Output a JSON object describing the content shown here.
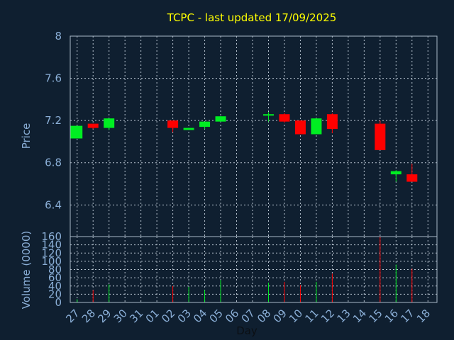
{
  "colors": {
    "background": "#0f1f30",
    "plot_background": "#0f1f30",
    "frame": "#a8b8c8",
    "grid": "#b8c4d0",
    "title": "#ffff00",
    "axis_text": "#8aaed6",
    "xlabel": "#0b0f14",
    "up": "#00ee22",
    "down": "#ff0000"
  },
  "chart_data": [
    {
      "type": "candlestick",
      "title": "TCPC - last updated 17/09/2025",
      "ylabel": "Price",
      "ylim": [
        6.1,
        8.0
      ],
      "yticks": [
        6.4,
        6.8,
        7.2,
        7.6,
        8
      ],
      "ytick_labels": [
        "6.4",
        "6.8",
        "7.2",
        "7.6",
        "8"
      ],
      "grid": true,
      "x_index": [
        -0.5,
        21.5
      ],
      "candles": [
        {
          "day": "27",
          "i": 0,
          "open": 7.03,
          "high": 7.15,
          "low": 7.03,
          "close": 7.15
        },
        {
          "day": "28",
          "i": 1,
          "open": 7.17,
          "high": 7.17,
          "low": 7.12,
          "close": 7.13
        },
        {
          "day": "29",
          "i": 2,
          "open": 7.13,
          "high": 7.22,
          "low": 7.11,
          "close": 7.22
        },
        {
          "day": "02",
          "i": 6,
          "open": 7.2,
          "high": 7.2,
          "low": 7.09,
          "close": 7.13
        },
        {
          "day": "03",
          "i": 7,
          "open": 7.11,
          "high": 7.13,
          "low": 7.11,
          "close": 7.13
        },
        {
          "day": "04",
          "i": 8,
          "open": 7.14,
          "high": 7.19,
          "low": 7.12,
          "close": 7.19
        },
        {
          "day": "05",
          "i": 9,
          "open": 7.19,
          "high": 7.24,
          "low": 7.19,
          "close": 7.24
        },
        {
          "day": "08",
          "i": 12,
          "open": 7.25,
          "high": 7.28,
          "low": 7.19,
          "close": 7.26
        },
        {
          "day": "09",
          "i": 13,
          "open": 7.26,
          "high": 7.27,
          "low": 7.18,
          "close": 7.19
        },
        {
          "day": "10",
          "i": 14,
          "open": 7.2,
          "high": 7.2,
          "low": 7.07,
          "close": 7.07
        },
        {
          "day": "11",
          "i": 15,
          "open": 7.07,
          "high": 7.22,
          "low": 7.07,
          "close": 7.22
        },
        {
          "day": "12",
          "i": 16,
          "open": 7.26,
          "high": 7.27,
          "low": 7.08,
          "close": 7.12
        },
        {
          "day": "15",
          "i": 19,
          "open": 7.17,
          "high": 7.2,
          "low": 6.92,
          "close": 6.92
        },
        {
          "day": "16",
          "i": 20,
          "open": 6.69,
          "high": 6.73,
          "low": 6.62,
          "close": 6.72
        },
        {
          "day": "17",
          "i": 21,
          "open": 6.69,
          "high": 6.79,
          "low": 6.62,
          "close": 6.62
        }
      ]
    },
    {
      "type": "bar",
      "ylabel": "Volume (0000)",
      "xlabel": "Day",
      "ylim": [
        0,
        160
      ],
      "yticks": [
        0,
        20,
        40,
        60,
        80,
        100,
        120,
        140,
        160
      ],
      "ytick_labels": [
        "0",
        "20",
        "40",
        "60",
        "80",
        "100",
        "120",
        "140",
        "160"
      ],
      "categories": [
        "27",
        "28",
        "29",
        "30",
        "31",
        "01",
        "02",
        "03",
        "04",
        "05",
        "06",
        "07",
        "08",
        "09",
        "10",
        "11",
        "12",
        "13",
        "14",
        "15",
        "16",
        "17",
        "18"
      ],
      "values": [
        8,
        30,
        44,
        0,
        0,
        0,
        40,
        38,
        30,
        55,
        0,
        0,
        48,
        50,
        42,
        50,
        70,
        0,
        0,
        160,
        92,
        82,
        0
      ],
      "bar_direction": [
        "up",
        "down",
        "up",
        "none",
        "none",
        "none",
        "down",
        "up",
        "up",
        "up",
        "none",
        "none",
        "up",
        "down",
        "down",
        "up",
        "down",
        "none",
        "none",
        "down",
        "up",
        "down",
        "none"
      ]
    }
  ]
}
